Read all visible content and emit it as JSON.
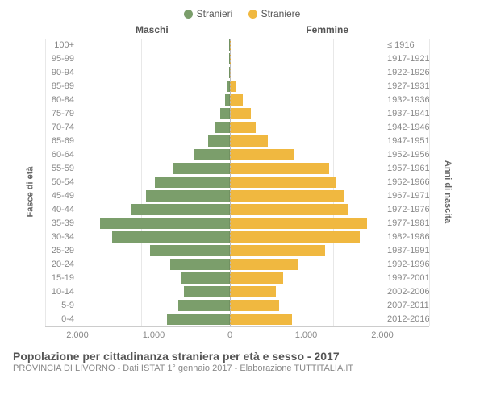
{
  "legend": {
    "male": {
      "label": "Stranieri",
      "color": "#7b9e6b"
    },
    "female": {
      "label": "Straniere",
      "color": "#f0b840"
    }
  },
  "column_titles": {
    "left": "Maschi",
    "right": "Femmine"
  },
  "axis_labels": {
    "left": "Fasce di età",
    "right": "Anni di nascita"
  },
  "x_axis": {
    "max_abs": 2000,
    "ticks": [
      {
        "pos": -2000,
        "label": "2.000"
      },
      {
        "pos": -1000,
        "label": "1.000"
      },
      {
        "pos": 0,
        "label": "0"
      },
      {
        "pos": 1000,
        "label": "1.000"
      },
      {
        "pos": 2000,
        "label": "2.000"
      }
    ],
    "gridlines": [
      -2000,
      -1000,
      1000,
      2000
    ]
  },
  "style": {
    "bg": "#ffffff",
    "grid_color": "#e8e8e8",
    "centerline_color": "#bbbbbb",
    "text_color": "#888888",
    "title_color": "#555555"
  },
  "rows": [
    {
      "age": "100+",
      "birth": "≤ 1916",
      "m": 5,
      "f": 5
    },
    {
      "age": "95-99",
      "birth": "1917-1921",
      "m": 10,
      "f": 10
    },
    {
      "age": "90-94",
      "birth": "1922-1926",
      "m": 15,
      "f": 15
    },
    {
      "age": "85-89",
      "birth": "1927-1931",
      "m": 40,
      "f": 80
    },
    {
      "age": "80-84",
      "birth": "1932-1936",
      "m": 60,
      "f": 170
    },
    {
      "age": "75-79",
      "birth": "1937-1941",
      "m": 130,
      "f": 280
    },
    {
      "age": "70-74",
      "birth": "1942-1946",
      "m": 200,
      "f": 340
    },
    {
      "age": "65-69",
      "birth": "1947-1951",
      "m": 290,
      "f": 500
    },
    {
      "age": "60-64",
      "birth": "1952-1956",
      "m": 480,
      "f": 850
    },
    {
      "age": "55-59",
      "birth": "1957-1961",
      "m": 740,
      "f": 1300
    },
    {
      "age": "50-54",
      "birth": "1962-1966",
      "m": 980,
      "f": 1400
    },
    {
      "age": "45-49",
      "birth": "1967-1971",
      "m": 1100,
      "f": 1500
    },
    {
      "age": "40-44",
      "birth": "1972-1976",
      "m": 1300,
      "f": 1550
    },
    {
      "age": "35-39",
      "birth": "1977-1981",
      "m": 1700,
      "f": 1800
    },
    {
      "age": "30-34",
      "birth": "1982-1986",
      "m": 1550,
      "f": 1700
    },
    {
      "age": "25-29",
      "birth": "1987-1991",
      "m": 1050,
      "f": 1250
    },
    {
      "age": "20-24",
      "birth": "1992-1996",
      "m": 780,
      "f": 900
    },
    {
      "age": "15-19",
      "birth": "1997-2001",
      "m": 650,
      "f": 700
    },
    {
      "age": "10-14",
      "birth": "2002-2006",
      "m": 600,
      "f": 600
    },
    {
      "age": "5-9",
      "birth": "2007-2011",
      "m": 680,
      "f": 650
    },
    {
      "age": "0-4",
      "birth": "2012-2016",
      "m": 830,
      "f": 820
    }
  ],
  "footer": {
    "title": "Popolazione per cittadinanza straniera per età e sesso - 2017",
    "sub": "PROVINCIA DI LIVORNO - Dati ISTAT 1° gennaio 2017 - Elaborazione TUTTITALIA.IT"
  }
}
